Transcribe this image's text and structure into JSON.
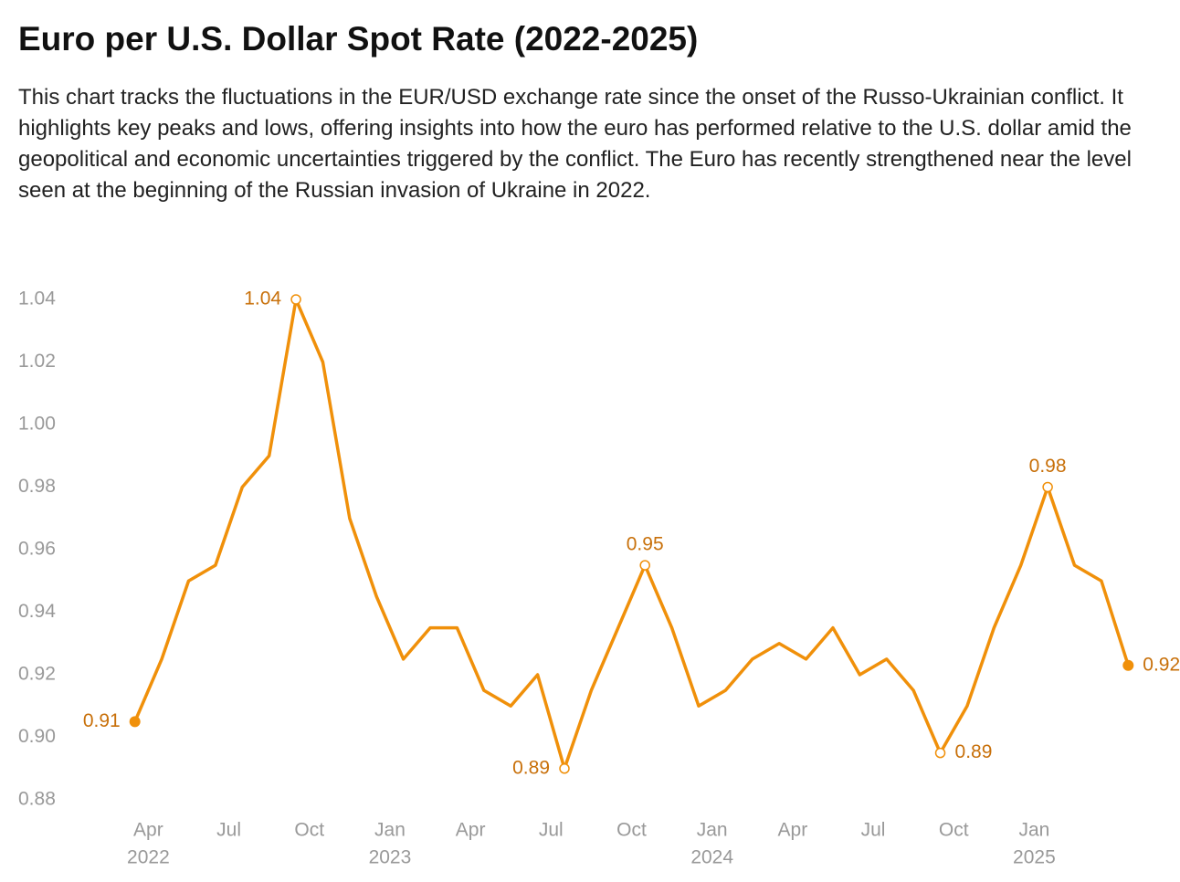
{
  "chart_data": {
    "type": "line",
    "title": "Euro per U.S. Dollar Spot Rate (2022-2025)",
    "subtitle": "This chart tracks the fluctuations in the EUR/USD exchange rate since the onset of the Russo-Ukrainian conflict. It highlights key peaks and lows, offering insights into how the euro has performed relative to the U.S. dollar amid the geopolitical and economic uncertainties triggered by the conflict. The Euro has recently strengthened near the level seen at the beginning of the Russian invasion of Ukraine in 2022.",
    "x": [
      "2022-03",
      "2022-04",
      "2022-05",
      "2022-06",
      "2022-07",
      "2022-08",
      "2022-09",
      "2022-10",
      "2022-11",
      "2022-12",
      "2023-01",
      "2023-02",
      "2023-03",
      "2023-04",
      "2023-05",
      "2023-06",
      "2023-07",
      "2023-08",
      "2023-09",
      "2023-10",
      "2023-11",
      "2023-12",
      "2024-01",
      "2024-02",
      "2024-03",
      "2024-04",
      "2024-05",
      "2024-06",
      "2024-07",
      "2024-08",
      "2024-09",
      "2024-10",
      "2024-11",
      "2024-12",
      "2025-01",
      "2025-02",
      "2025-03",
      "2025-04"
    ],
    "series": [
      {
        "name": "EUR/USD",
        "color": "#f0900a",
        "values": [
          0.905,
          0.925,
          0.95,
          0.955,
          0.98,
          0.99,
          1.04,
          1.02,
          0.97,
          0.945,
          0.925,
          0.935,
          0.935,
          0.915,
          0.91,
          0.92,
          0.89,
          0.915,
          0.935,
          0.955,
          0.935,
          0.91,
          0.915,
          0.925,
          0.93,
          0.925,
          0.935,
          0.92,
          0.925,
          0.915,
          0.895,
          0.91,
          0.935,
          0.955,
          0.98,
          0.955,
          0.95,
          0.923
        ],
        "value_labels": [
          "0.91",
          null,
          null,
          null,
          null,
          null,
          "1.04",
          null,
          null,
          null,
          null,
          null,
          null,
          null,
          null,
          null,
          "0.89",
          null,
          null,
          "0.95",
          null,
          null,
          null,
          null,
          null,
          null,
          null,
          null,
          null,
          null,
          "0.89",
          null,
          null,
          null,
          "0.98",
          null,
          null,
          "0.92"
        ]
      }
    ],
    "xlim": [
      "2022-03",
      "2025-04"
    ],
    "xticks": [
      {
        "value": "2022-04",
        "label": "Apr",
        "year": "2022"
      },
      {
        "value": "2022-07",
        "label": "Jul"
      },
      {
        "value": "2022-10",
        "label": "Oct"
      },
      {
        "value": "2023-01",
        "label": "Jan",
        "year": "2023"
      },
      {
        "value": "2023-04",
        "label": "Apr"
      },
      {
        "value": "2023-07",
        "label": "Jul"
      },
      {
        "value": "2023-10",
        "label": "Oct"
      },
      {
        "value": "2024-01",
        "label": "Jan",
        "year": "2024"
      },
      {
        "value": "2024-04",
        "label": "Apr"
      },
      {
        "value": "2024-07",
        "label": "Jul"
      },
      {
        "value": "2024-10",
        "label": "Oct"
      },
      {
        "value": "2025-01",
        "label": "Jan",
        "year": "2025"
      }
    ],
    "ylim": [
      0.88,
      1.04
    ],
    "yticks": [
      0.88,
      {
        "value": 0.9,
        "label": "0.90"
      },
      0.92,
      0.94,
      0.96,
      0.98,
      {
        "value": 1.0,
        "label": "1.00"
      },
      1.02,
      1.04
    ],
    "label_color": "#c8700a"
  }
}
